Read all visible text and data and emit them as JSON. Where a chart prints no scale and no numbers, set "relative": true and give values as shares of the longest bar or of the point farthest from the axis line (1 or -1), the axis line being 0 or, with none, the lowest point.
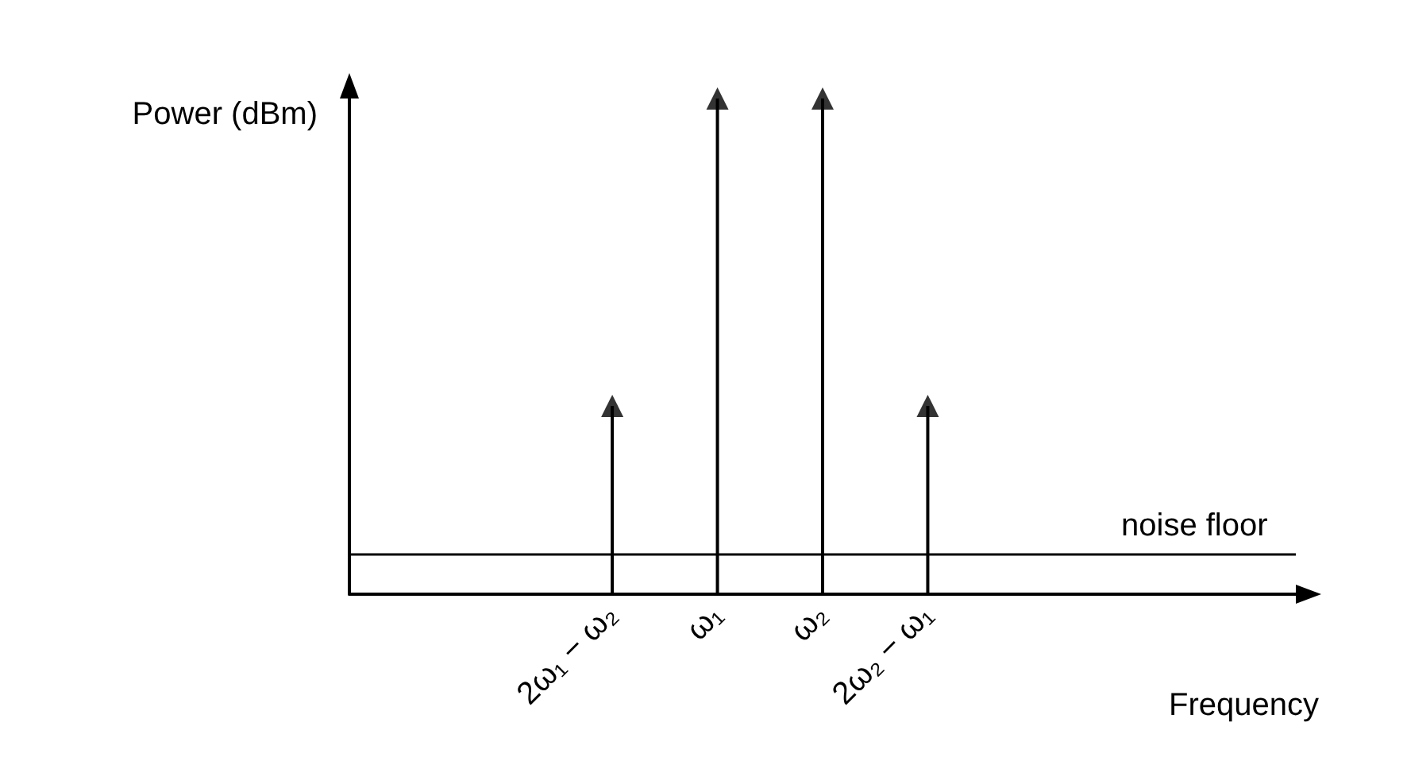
{
  "chart_data": {
    "type": "lollipop",
    "relative": true,
    "xlabel": "Frequency",
    "ylabel": "Power (dBm)",
    "categories": [
      null,
      null,
      "2ω₁ − ω₂",
      "ω₁",
      "ω₂",
      "2ω₂ − ω₁",
      null,
      null,
      null
    ],
    "series": [
      {
        "color": "#000000",
        "values": [
          null,
          null,
          0.38,
          1,
          1,
          0.38,
          null,
          null,
          null
        ]
      }
    ],
    "marker": "triangle",
    "grid": false,
    "ref_lines": [
      {
        "axis": "y",
        "value": 0.08,
        "label": "noise floor",
        "color": "#000000"
      }
    ]
  }
}
